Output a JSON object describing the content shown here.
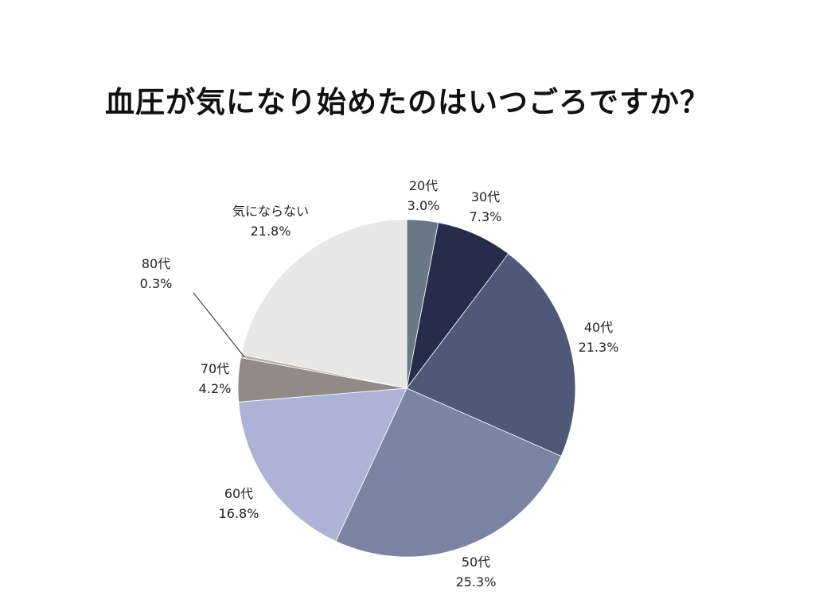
{
  "chart_data": {
    "type": "pie",
    "title": "血圧が気になり始めたのはいつごろですか？",
    "slices": [
      {
        "name": "20代",
        "pct_label": "3.0%",
        "value": 3.0,
        "color": "#687886"
      },
      {
        "name": "30代",
        "pct_label": "7.3%",
        "value": 7.3,
        "color": "#252d4b"
      },
      {
        "name": "40代",
        "pct_label": "21.3%",
        "value": 21.3,
        "color": "#4f5877"
      },
      {
        "name": "50代",
        "pct_label": "25.3%",
        "value": 25.3,
        "color": "#7c84a5"
      },
      {
        "name": "60代",
        "pct_label": "16.8%",
        "value": 16.8,
        "color": "#acb3d7"
      },
      {
        "name": "70代",
        "pct_label": "4.2%",
        "value": 4.2,
        "color": "#908b86"
      },
      {
        "name": "80代",
        "pct_label": "0.3%",
        "value": 0.3,
        "color": "#b9aca3",
        "label_color": "#5e5a86"
      },
      {
        "name": "気にならない",
        "pct_label": "21.8%",
        "value": 21.8,
        "color": "#e7e7e7"
      }
    ],
    "start_angle": "top",
    "direction": "clockwise",
    "legend": "none"
  }
}
